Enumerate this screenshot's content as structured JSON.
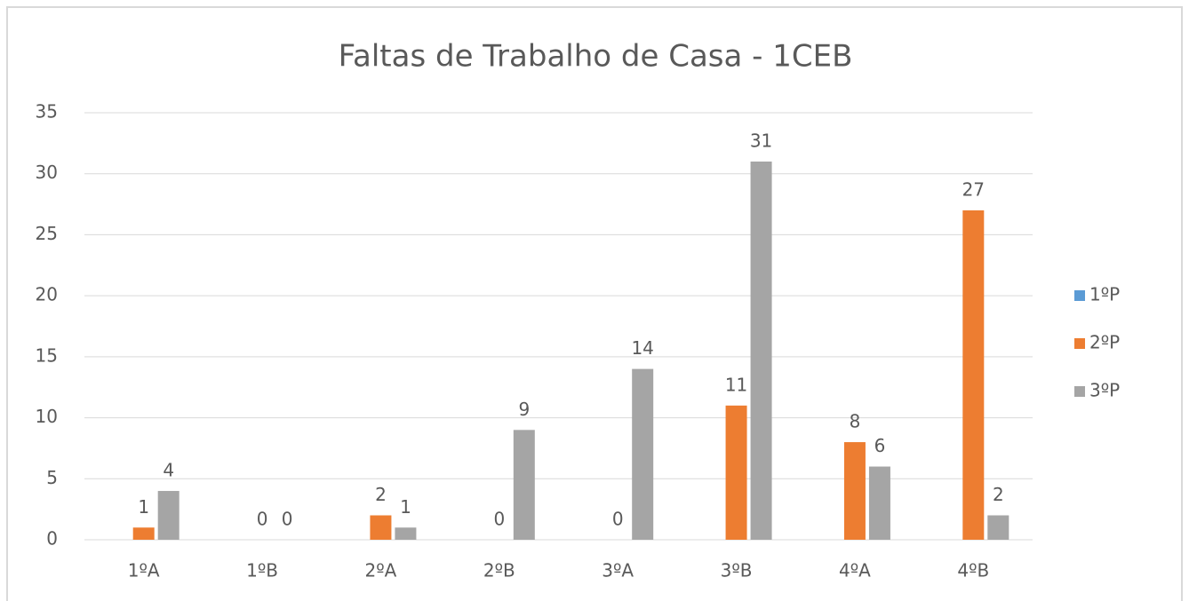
{
  "chart_data": {
    "type": "bar",
    "title": "Faltas de Trabalho de Casa - 1CEB",
    "categories": [
      "1ºA",
      "1ºB",
      "2ºA",
      "2ºB",
      "3ºA",
      "3ºB",
      "4ºA",
      "4ºB"
    ],
    "series": [
      {
        "name": "1ºP",
        "color": "#5b9bd5",
        "values": [
          null,
          null,
          null,
          null,
          null,
          null,
          null,
          null
        ]
      },
      {
        "name": "2ºP",
        "color": "#ed7d31",
        "values": [
          1,
          0,
          2,
          0,
          0,
          11,
          8,
          27
        ]
      },
      {
        "name": "3ºP",
        "color": "#a5a5a5",
        "values": [
          4,
          0,
          1,
          9,
          14,
          31,
          6,
          2
        ]
      }
    ],
    "ylim": [
      0,
      35
    ],
    "yticks": [
      0,
      5,
      10,
      15,
      20,
      25,
      30,
      35
    ],
    "grid": true,
    "legend": "right"
  }
}
